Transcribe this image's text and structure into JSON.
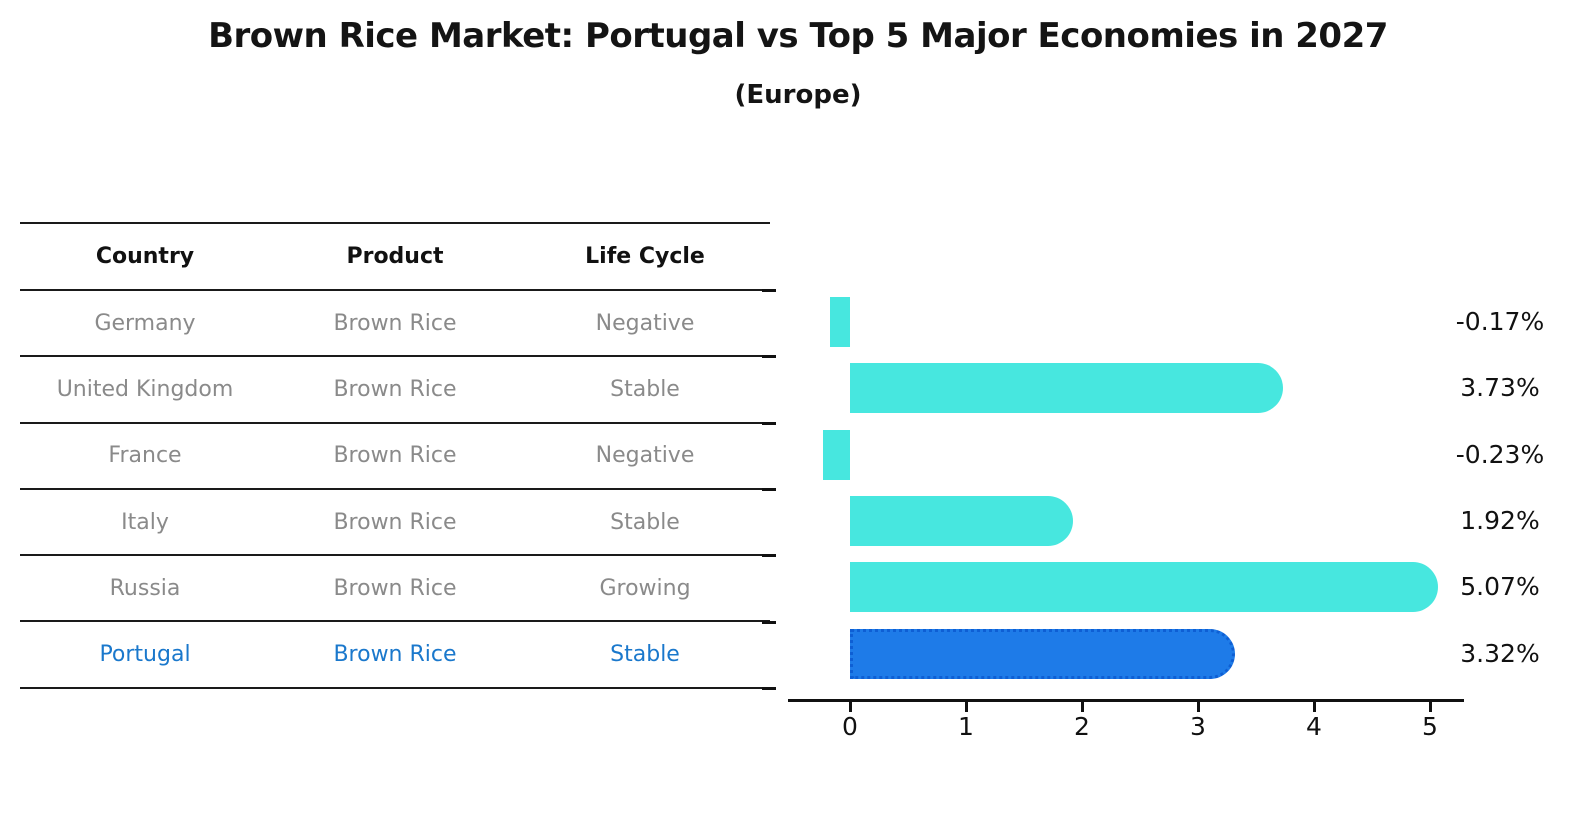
{
  "title": "Brown Rice Market: Portugal vs Top 5 Major Economies in 2027",
  "subtitle": "(Europe)",
  "table": {
    "headers": [
      "Country",
      "Product",
      "Life Cycle"
    ],
    "rows": [
      {
        "country": "Germany",
        "product": "Brown Rice",
        "life_cycle": "Negative",
        "highlighted": false
      },
      {
        "country": "United Kingdom",
        "product": "Brown Rice",
        "life_cycle": "Stable",
        "highlighted": false
      },
      {
        "country": "France",
        "product": "Brown Rice",
        "life_cycle": "Negative",
        "highlighted": false
      },
      {
        "country": "Italy",
        "product": "Brown Rice",
        "life_cycle": "Stable",
        "highlighted": false
      },
      {
        "country": "Russia",
        "product": "Brown Rice",
        "life_cycle": "Growing",
        "highlighted": false
      },
      {
        "country": "Portugal",
        "product": "Brown Rice",
        "life_cycle": "Stable",
        "highlighted": true
      }
    ]
  },
  "chart_data": {
    "type": "bar",
    "orientation": "horizontal",
    "title": "Brown Rice Market: Portugal vs Top 5 Major Economies in 2027",
    "subtitle": "(Europe)",
    "categories": [
      "Germany",
      "United Kingdom",
      "France",
      "Italy",
      "Russia",
      "Portugal"
    ],
    "values": [
      -0.17,
      3.73,
      -0.23,
      1.92,
      5.07,
      3.32
    ],
    "value_labels": [
      "-0.17%",
      "3.73%",
      "-0.23%",
      "1.92%",
      "5.07%",
      "3.32%"
    ],
    "x_ticks": [
      "0",
      "1",
      "2",
      "3",
      "4",
      "5"
    ],
    "xlim": [
      -0.55,
      5.3
    ],
    "grid": false,
    "legend": "none",
    "bar_color": "#47e7df",
    "highlight_bar_color": "#1e7be8",
    "highlight_edge_color": "#0e5fd4",
    "highlight_index": 5,
    "axis_color": "#111111"
  },
  "colors": {
    "background": "#ffffff",
    "table_line": "#1a1a1a",
    "row_text": "#8a8a8a",
    "header_text": "#111111",
    "highlight_text": "#1a78cc"
  }
}
